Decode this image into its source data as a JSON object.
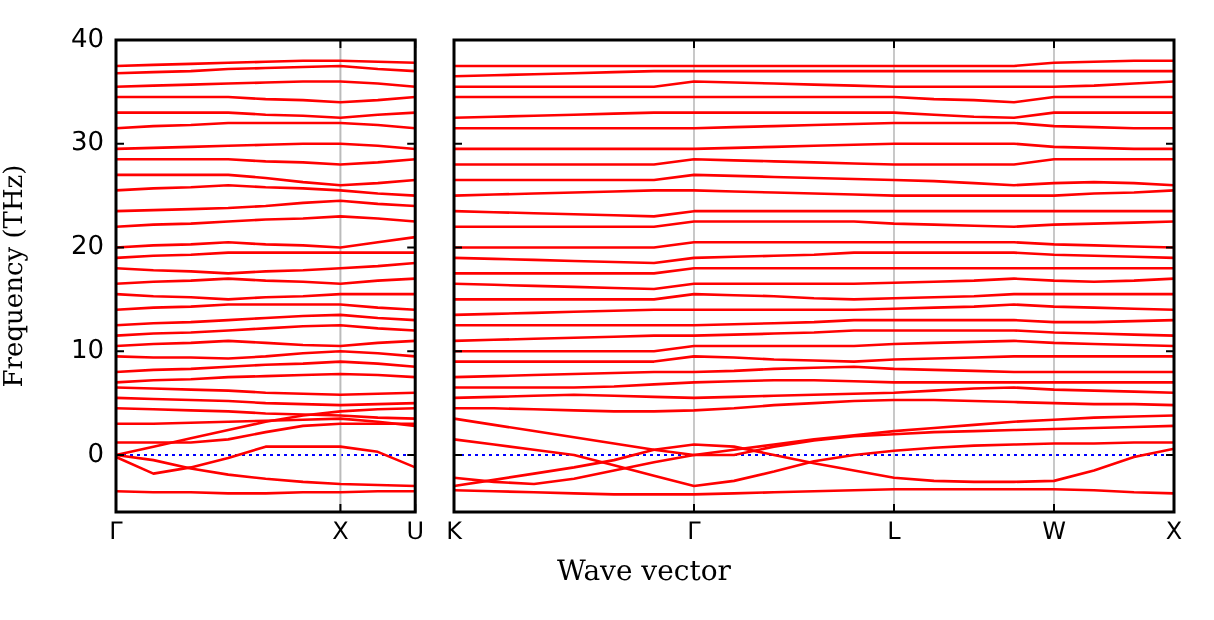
{
  "chart_data": [
    {
      "type": "line",
      "ylabel": "Frequency (THz)",
      "categories": [
        "Γ",
        null,
        null,
        null,
        null,
        null,
        "X",
        null,
        "U"
      ],
      "ylim": [
        -5.5,
        40
      ],
      "yticks": [
        0,
        10,
        20,
        30,
        40
      ],
      "marker": "none",
      "line_style": "solid",
      "legend": false,
      "ref_lines": [
        {
          "axis": "y",
          "value": 0,
          "color": "#0000ff",
          "line_style": "dotted"
        },
        {
          "axis": "x",
          "value": "X",
          "color": "#bbbbbb",
          "line_style": "solid"
        }
      ],
      "series": [
        {
          "color": "#ff0000",
          "values": [
            -3.5,
            -3.6,
            -3.6,
            -3.7,
            -3.7,
            -3.6,
            -3.6,
            -3.5,
            -3.5
          ]
        },
        {
          "color": "#ff0000",
          "values": [
            0,
            -0.5,
            -1.3,
            -1.9,
            -2.3,
            -2.6,
            -2.8,
            -2.9,
            -3
          ]
        },
        {
          "color": "#ff0000",
          "values": [
            -0.2,
            -1.8,
            -1.2,
            -0.3,
            0.8,
            0.8,
            0.8,
            0.3,
            -1.2
          ]
        },
        {
          "color": "#ff0000",
          "values": [
            1.2,
            1.2,
            1.2,
            1.5,
            2.2,
            2.8,
            3,
            3,
            3
          ]
        },
        {
          "color": "#ff0000",
          "values": [
            0,
            0.8,
            1.6,
            2.4,
            3.2,
            3.8,
            4.2,
            4.4,
            4.5
          ]
        },
        {
          "color": "#ff0000",
          "values": [
            3,
            3,
            3.1,
            3.2,
            3.3,
            3.4,
            3.5,
            3.2,
            2.8
          ]
        },
        {
          "color": "#ff0000",
          "values": [
            4.5,
            4.4,
            4.3,
            4.2,
            4,
            3.9,
            3.8,
            3.6,
            3.5
          ]
        },
        {
          "color": "#ff0000",
          "values": [
            5.5,
            5.4,
            5.3,
            5.2,
            5,
            4.9,
            4.8,
            4.9,
            5
          ]
        },
        {
          "color": "#ff0000",
          "values": [
            6.5,
            6.4,
            6.3,
            6.2,
            6,
            5.9,
            5.8,
            5.9,
            6
          ]
        },
        {
          "color": "#ff0000",
          "values": [
            7,
            7.2,
            7.3,
            7.5,
            7.6,
            7.7,
            7.8,
            7.7,
            7.5
          ]
        },
        {
          "color": "#ff0000",
          "values": [
            8,
            8.2,
            8.3,
            8.5,
            8.7,
            8.8,
            9,
            8.8,
            8.5
          ]
        },
        {
          "color": "#ff0000",
          "values": [
            9.5,
            9.4,
            9.4,
            9.3,
            9.5,
            9.8,
            10,
            9.8,
            9.5
          ]
        },
        {
          "color": "#ff0000",
          "values": [
            10.5,
            10.7,
            10.8,
            11,
            10.8,
            10.6,
            10.5,
            10.8,
            11
          ]
        },
        {
          "color": "#ff0000",
          "values": [
            11.5,
            11.7,
            11.8,
            12,
            12.2,
            12.4,
            12.5,
            12.2,
            12
          ]
        },
        {
          "color": "#ff0000",
          "values": [
            12.5,
            12.7,
            12.8,
            13,
            13.2,
            13.4,
            13.5,
            13.2,
            13
          ]
        },
        {
          "color": "#ff0000",
          "values": [
            14,
            14.2,
            14.3,
            14.5,
            14.5,
            14.5,
            14.5,
            14.2,
            14
          ]
        },
        {
          "color": "#ff0000",
          "values": [
            15.5,
            15.3,
            15.2,
            15,
            15.2,
            15.3,
            15.5,
            15.5,
            15.5
          ]
        },
        {
          "color": "#ff0000",
          "values": [
            16.5,
            16.7,
            16.8,
            17,
            16.8,
            16.7,
            16.5,
            16.8,
            17
          ]
        },
        {
          "color": "#ff0000",
          "values": [
            18,
            17.8,
            17.7,
            17.5,
            17.7,
            17.8,
            18,
            18.2,
            18.5
          ]
        },
        {
          "color": "#ff0000",
          "values": [
            19,
            19.2,
            19.3,
            19.5,
            19.5,
            19.5,
            19.5,
            19.5,
            19.5
          ]
        },
        {
          "color": "#ff0000",
          "values": [
            20,
            20.2,
            20.3,
            20.5,
            20.3,
            20.2,
            20,
            20.5,
            21
          ]
        },
        {
          "color": "#ff0000",
          "values": [
            22,
            22.2,
            22.3,
            22.5,
            22.7,
            22.8,
            23,
            22.8,
            22.5
          ]
        },
        {
          "color": "#ff0000",
          "values": [
            23.5,
            23.6,
            23.7,
            23.8,
            24,
            24.3,
            24.5,
            24.2,
            24
          ]
        },
        {
          "color": "#ff0000",
          "values": [
            25.5,
            25.7,
            25.8,
            26,
            25.8,
            25.7,
            25.5,
            25.2,
            25
          ]
        },
        {
          "color": "#ff0000",
          "values": [
            27,
            27,
            27,
            27,
            26.7,
            26.3,
            26,
            26.2,
            26.5
          ]
        },
        {
          "color": "#ff0000",
          "values": [
            28.5,
            28.5,
            28.5,
            28.5,
            28.3,
            28.2,
            28,
            28.2,
            28.5
          ]
        },
        {
          "color": "#ff0000",
          "values": [
            29.5,
            29.6,
            29.7,
            29.8,
            29.9,
            30,
            30,
            29.8,
            29.5
          ]
        },
        {
          "color": "#ff0000",
          "values": [
            31.5,
            31.7,
            31.8,
            32,
            32,
            32,
            32,
            31.8,
            31.5
          ]
        },
        {
          "color": "#ff0000",
          "values": [
            33,
            33,
            33,
            33,
            32.8,
            32.7,
            32.5,
            32.8,
            33
          ]
        },
        {
          "color": "#ff0000",
          "values": [
            34.5,
            34.5,
            34.5,
            34.5,
            34.3,
            34.2,
            34,
            34.2,
            34.5
          ]
        },
        {
          "color": "#ff0000",
          "values": [
            35.5,
            35.6,
            35.7,
            35.8,
            35.9,
            36,
            36,
            35.8,
            35.5
          ]
        },
        {
          "color": "#ff0000",
          "values": [
            36.8,
            36.9,
            37,
            37.2,
            37.3,
            37.4,
            37.5,
            37.2,
            37
          ]
        },
        {
          "color": "#ff0000",
          "values": [
            37.5,
            37.6,
            37.7,
            37.8,
            37.9,
            38,
            38,
            37.9,
            37.8
          ]
        }
      ]
    },
    {
      "type": "line",
      "xlabel": "Wave vector",
      "categories": [
        "K",
        null,
        null,
        null,
        null,
        null,
        "Γ",
        null,
        null,
        null,
        null,
        "L",
        null,
        null,
        null,
        "W",
        null,
        null,
        "X"
      ],
      "ylim": [
        -5.5,
        40
      ],
      "yticks": [
        {
          "value": 0,
          "label": null
        },
        {
          "value": 10,
          "label": null
        },
        {
          "value": 20,
          "label": null
        },
        {
          "value": 30,
          "label": null
        },
        {
          "value": 40,
          "label": null
        }
      ],
      "tick_labels": "x",
      "grid": "x",
      "marker": "none",
      "line_style": "solid",
      "legend": false,
      "ref_lines": [
        {
          "axis": "y",
          "value": 0,
          "color": "#0000ff",
          "line_style": "dotted"
        }
      ],
      "series": [
        {
          "color": "#ff0000",
          "values": [
            -3.4,
            -3.5,
            -3.6,
            -3.7,
            -3.8,
            -3.8,
            -3.8,
            -3.7,
            -3.6,
            -3.5,
            -3.4,
            -3.3,
            -3.3,
            -3.3,
            -3.3,
            -3.3,
            -3.4,
            -3.6,
            -3.7
          ]
        },
        {
          "color": "#ff0000",
          "values": [
            -2.2,
            -2.6,
            -2.8,
            -2.3,
            -1.5,
            -0.7,
            0,
            0.5,
            1,
            1.5,
            1.9,
            2.3,
            2.6,
            2.9,
            3.2,
            3.4,
            3.6,
            3.7,
            3.8
          ]
        },
        {
          "color": "#ff0000",
          "values": [
            1.5,
            1,
            0.5,
            0,
            -1,
            -2,
            -3,
            -2.5,
            -1.6,
            -0.6,
            0,
            0.4,
            0.7,
            0.9,
            1,
            1.1,
            1.1,
            1.2,
            1.2
          ]
        },
        {
          "color": "#ff0000",
          "values": [
            -3,
            -2.4,
            -1.8,
            -1.2,
            -0.5,
            0.5,
            1,
            0.8,
            0,
            -0.8,
            -1.5,
            -2.2,
            -2.5,
            -2.6,
            -2.6,
            -2.5,
            -1.5,
            -0.2,
            0.6
          ]
        },
        {
          "color": "#ff0000",
          "values": [
            3.5,
            2.9,
            2.3,
            1.7,
            1.1,
            0.5,
            0,
            0,
            0.8,
            1.4,
            1.8,
            2,
            2.2,
            2.3,
            2.4,
            2.5,
            2.6,
            2.7,
            2.8
          ]
        },
        {
          "color": "#ff0000",
          "values": [
            4.5,
            4.5,
            4.4,
            4.3,
            4.2,
            4.2,
            4.3,
            4.5,
            4.8,
            5,
            5.2,
            5.3,
            5.3,
            5.2,
            5.1,
            5,
            4.9,
            4.9,
            4.8
          ]
        },
        {
          "color": "#ff0000",
          "values": [
            5.5,
            5.6,
            5.7,
            5.8,
            5.7,
            5.6,
            5.5,
            5.6,
            5.7,
            5.8,
            5.9,
            6,
            6.2,
            6.4,
            6.5,
            6.3,
            6.2,
            6.1,
            6
          ]
        },
        {
          "color": "#ff0000",
          "values": [
            6.5,
            6.5,
            6.5,
            6.5,
            6.6,
            6.8,
            7,
            7.1,
            7.2,
            7.2,
            7.1,
            7,
            7,
            7,
            7,
            7,
            7,
            7,
            7
          ]
        },
        {
          "color": "#ff0000",
          "values": [
            7.5,
            7.6,
            7.7,
            7.8,
            7.9,
            8,
            8,
            8.1,
            8.3,
            8.4,
            8.5,
            8.3,
            8.2,
            8.1,
            8,
            8,
            8,
            8,
            8
          ]
        },
        {
          "color": "#ff0000",
          "values": [
            9,
            9,
            9,
            9,
            9,
            9,
            9.5,
            9.4,
            9.2,
            9.1,
            9,
            9.2,
            9.3,
            9.4,
            9.5,
            9.5,
            9.5,
            9.5,
            9.5
          ]
        },
        {
          "color": "#ff0000",
          "values": [
            10,
            10,
            10,
            10,
            10,
            10,
            10.5,
            10.5,
            10.5,
            10.5,
            10.5,
            10.7,
            10.8,
            10.9,
            11,
            10.8,
            10.7,
            10.6,
            10.5
          ]
        },
        {
          "color": "#ff0000",
          "values": [
            11,
            11.1,
            11.2,
            11.3,
            11.4,
            11.5,
            11.5,
            11.6,
            11.7,
            11.8,
            12,
            12,
            12,
            12,
            12,
            11.8,
            11.7,
            11.6,
            11.5
          ]
        },
        {
          "color": "#ff0000",
          "values": [
            12.5,
            12.5,
            12.5,
            12.5,
            12.5,
            12.5,
            12.5,
            12.6,
            12.7,
            12.8,
            13,
            13,
            13,
            13,
            13,
            12.8,
            12.8,
            12.9,
            13
          ]
        },
        {
          "color": "#ff0000",
          "values": [
            13.5,
            13.6,
            13.7,
            13.8,
            13.9,
            14,
            14,
            14,
            14,
            14,
            14,
            14.1,
            14.2,
            14.3,
            14.5,
            14.3,
            14.2,
            14.1,
            14
          ]
        },
        {
          "color": "#ff0000",
          "values": [
            15,
            15,
            15,
            15,
            15,
            15,
            15.5,
            15.4,
            15.3,
            15.1,
            15,
            15.1,
            15.2,
            15.3,
            15.5,
            15.5,
            15.5,
            15.5,
            15.5
          ]
        },
        {
          "color": "#ff0000",
          "values": [
            16.5,
            16.4,
            16.3,
            16.2,
            16.1,
            16,
            16.5,
            16.5,
            16.5,
            16.5,
            16.5,
            16.6,
            16.7,
            16.8,
            17,
            16.8,
            16.7,
            16.8,
            17
          ]
        },
        {
          "color": "#ff0000",
          "values": [
            17.5,
            17.5,
            17.5,
            17.5,
            17.5,
            17.5,
            18,
            18,
            18,
            18,
            18,
            18,
            18,
            18,
            18,
            18,
            18,
            18,
            18
          ]
        },
        {
          "color": "#ff0000",
          "values": [
            19,
            18.9,
            18.8,
            18.7,
            18.6,
            18.5,
            19,
            19.1,
            19.2,
            19.3,
            19.5,
            19.5,
            19.5,
            19.5,
            19.5,
            19.3,
            19.2,
            19.1,
            19
          ]
        },
        {
          "color": "#ff0000",
          "values": [
            20,
            20,
            20,
            20,
            20,
            20,
            20.5,
            20.5,
            20.5,
            20.5,
            20.5,
            20.5,
            20.5,
            20.5,
            20.5,
            20.3,
            20.2,
            20.1,
            20
          ]
        },
        {
          "color": "#ff0000",
          "values": [
            22,
            22,
            22,
            22,
            22,
            22,
            22.5,
            22.5,
            22.5,
            22.5,
            22.5,
            22.3,
            22.2,
            22.1,
            22,
            22.2,
            22.3,
            22.4,
            22.5
          ]
        },
        {
          "color": "#ff0000",
          "values": [
            23.5,
            23.4,
            23.3,
            23.2,
            23.1,
            23,
            23.5,
            23.5,
            23.5,
            23.5,
            23.5,
            23.5,
            23.5,
            23.5,
            23.5,
            23.5,
            23.5,
            23.5,
            23.5
          ]
        },
        {
          "color": "#ff0000",
          "values": [
            25,
            25.1,
            25.2,
            25.3,
            25.4,
            25.5,
            25.5,
            25.4,
            25.3,
            25.2,
            25.1,
            25,
            25,
            25,
            25,
            25,
            25.2,
            25.3,
            25.5
          ]
        },
        {
          "color": "#ff0000",
          "values": [
            26.5,
            26.5,
            26.5,
            26.5,
            26.5,
            26.5,
            27,
            26.9,
            26.8,
            26.7,
            26.6,
            26.5,
            26.4,
            26.2,
            26,
            26.2,
            26.3,
            26.2,
            26
          ]
        },
        {
          "color": "#ff0000",
          "values": [
            28,
            28,
            28,
            28,
            28,
            28,
            28.5,
            28.4,
            28.3,
            28.2,
            28.1,
            28,
            28,
            28,
            28,
            28.5,
            28.5,
            28.5,
            28.5
          ]
        },
        {
          "color": "#ff0000",
          "values": [
            29.5,
            29.5,
            29.5,
            29.5,
            29.5,
            29.5,
            29.5,
            29.6,
            29.7,
            29.8,
            29.9,
            30,
            30,
            30,
            30,
            29.7,
            29.6,
            29.5,
            29.5
          ]
        },
        {
          "color": "#ff0000",
          "values": [
            31.5,
            31.5,
            31.5,
            31.5,
            31.5,
            31.5,
            31.5,
            31.6,
            31.7,
            31.8,
            31.9,
            32,
            32,
            32,
            32,
            31.7,
            31.6,
            31.5,
            31.5
          ]
        },
        {
          "color": "#ff0000",
          "values": [
            32.5,
            32.6,
            32.7,
            32.8,
            32.9,
            33,
            33,
            33,
            33,
            33,
            33,
            33,
            32.8,
            32.6,
            32.5,
            33,
            33,
            33,
            33
          ]
        },
        {
          "color": "#ff0000",
          "values": [
            34.5,
            34.5,
            34.5,
            34.5,
            34.5,
            34.5,
            34.5,
            34.5,
            34.5,
            34.5,
            34.5,
            34.5,
            34.3,
            34.2,
            34,
            34.5,
            34.5,
            34.5,
            34.5
          ]
        },
        {
          "color": "#ff0000",
          "values": [
            35.5,
            35.5,
            35.5,
            35.5,
            35.5,
            35.5,
            36,
            35.9,
            35.8,
            35.7,
            35.6,
            35.5,
            35.5,
            35.5,
            35.5,
            35.5,
            35.6,
            35.8,
            36
          ]
        },
        {
          "color": "#ff0000",
          "values": [
            36.5,
            36.6,
            36.7,
            36.8,
            36.9,
            37,
            37,
            37,
            37,
            37,
            37,
            37,
            37,
            37,
            37,
            37,
            37,
            37,
            37
          ]
        },
        {
          "color": "#ff0000",
          "values": [
            37.5,
            37.5,
            37.5,
            37.5,
            37.5,
            37.5,
            37.5,
            37.5,
            37.5,
            37.5,
            37.5,
            37.5,
            37.5,
            37.5,
            37.5,
            37.8,
            37.9,
            38,
            38
          ]
        }
      ]
    }
  ]
}
